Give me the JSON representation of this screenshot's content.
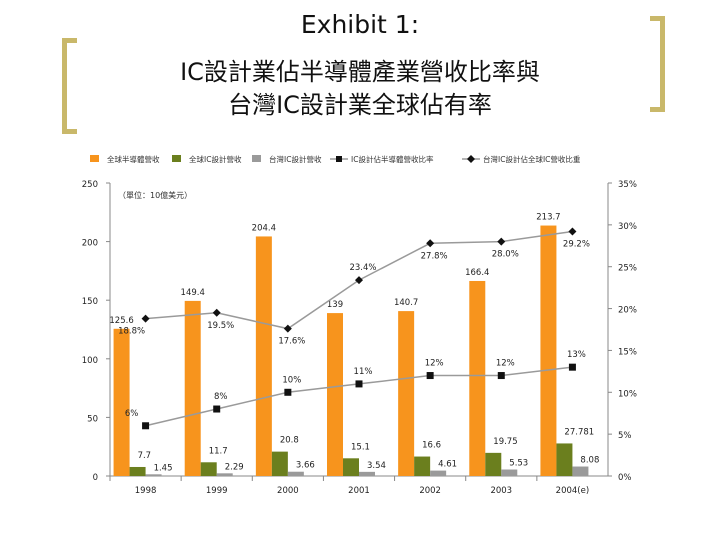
{
  "slide": {
    "title_line1": "Exhibit 1:",
    "title_line2": "IC設計業佔半導體產業營收比率與",
    "title_line3": "台灣IC設計業全球佔有率"
  },
  "chart_data": {
    "type": "bar",
    "title": "",
    "unit_note": "（單位：10億美元）",
    "categories": [
      "1998",
      "1999",
      "2000",
      "2001",
      "2002",
      "2003",
      "2004(e)"
    ],
    "series": [
      {
        "name": "全球半導體營收",
        "kind": "bar",
        "axis": "left",
        "color": "#f7941d",
        "values": [
          125.6,
          149.4,
          204.4,
          139,
          140.7,
          166.4,
          213.7
        ],
        "labels": [
          "125.6",
          "149.4",
          "204.4",
          "139",
          "140.7",
          "166.4",
          "213.7"
        ]
      },
      {
        "name": "全球IC設計營收",
        "kind": "bar",
        "axis": "left",
        "color": "#6b7f1e",
        "values": [
          7.7,
          11.7,
          20.8,
          15.1,
          16.6,
          19.75,
          27.781
        ],
        "labels": [
          "7.7",
          "11.7",
          "20.8",
          "15.1",
          "16.6",
          "19.75",
          "27.781"
        ]
      },
      {
        "name": "台灣IC設計營收",
        "kind": "bar",
        "axis": "left",
        "color": "#9a9a9a",
        "values": [
          1.45,
          2.29,
          3.66,
          3.54,
          4.61,
          5.53,
          8.08
        ],
        "labels": [
          "1.45",
          "2.29",
          "3.66",
          "3.54",
          "4.61",
          "5.53",
          "8.08"
        ]
      },
      {
        "name": "IC設計佔半導體營收比率",
        "kind": "line",
        "axis": "right",
        "color": "#9a9a9a",
        "marker": "square",
        "values": [
          6,
          8,
          10,
          11,
          12,
          12,
          13
        ],
        "labels": [
          "6%",
          "8%",
          "10%",
          "11%",
          "12%",
          "12%",
          "13%"
        ]
      },
      {
        "name": "台灣IC設計佔全球IC營收比重",
        "kind": "line",
        "axis": "right",
        "color": "#9a9a9a",
        "marker": "diamond",
        "values": [
          18.8,
          19.5,
          17.6,
          23.4,
          27.8,
          28.0,
          29.2
        ],
        "labels": [
          "18.8%",
          "19.5%",
          "17.6%",
          "23.4%",
          "27.8%",
          "28.0%",
          "29.2%"
        ]
      }
    ],
    "y_left": {
      "min": 0,
      "max": 250,
      "ticks": [
        "0",
        "50",
        "100",
        "150",
        "200",
        "250"
      ]
    },
    "y_right": {
      "min": 0,
      "max": 35,
      "ticks": [
        "0%",
        "5%",
        "10%",
        "15%",
        "20%",
        "25%",
        "30%",
        "35%"
      ]
    },
    "legend_position": "top",
    "grid": false
  }
}
